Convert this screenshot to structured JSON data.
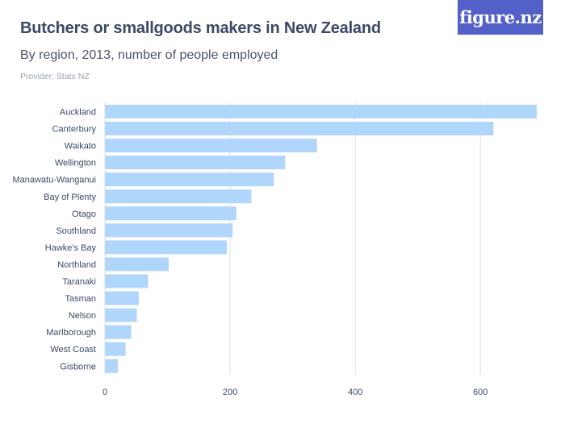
{
  "header": {
    "title": "Butchers or smallgoods makers in New Zealand",
    "subtitle": "By region, 2013, number of people employed",
    "provider": "Provider: Stats NZ",
    "logo_text": "figure.nz"
  },
  "colors": {
    "bar": "#b0d6fb",
    "grid": "#dcdfe3",
    "text": "#3b4a66",
    "logo_bg": "#5260c7"
  },
  "chart_data": {
    "type": "bar",
    "orientation": "horizontal",
    "categories": [
      "Auckland",
      "Canterbury",
      "Waikato",
      "Wellington",
      "Manawatu-Wanganui",
      "Bay of Plenty",
      "Otago",
      "Southland",
      "Hawke's Bay",
      "Northland",
      "Taranaki",
      "Tasman",
      "Nelson",
      "Marlborough",
      "West Coast",
      "Gisborne"
    ],
    "values": [
      690,
      621,
      339,
      288,
      270,
      234,
      210,
      204,
      195,
      102,
      69,
      54,
      51,
      42,
      33,
      21
    ],
    "xlim": [
      0,
      690
    ],
    "xticks": [
      0,
      200,
      400,
      600
    ],
    "grid": true
  }
}
